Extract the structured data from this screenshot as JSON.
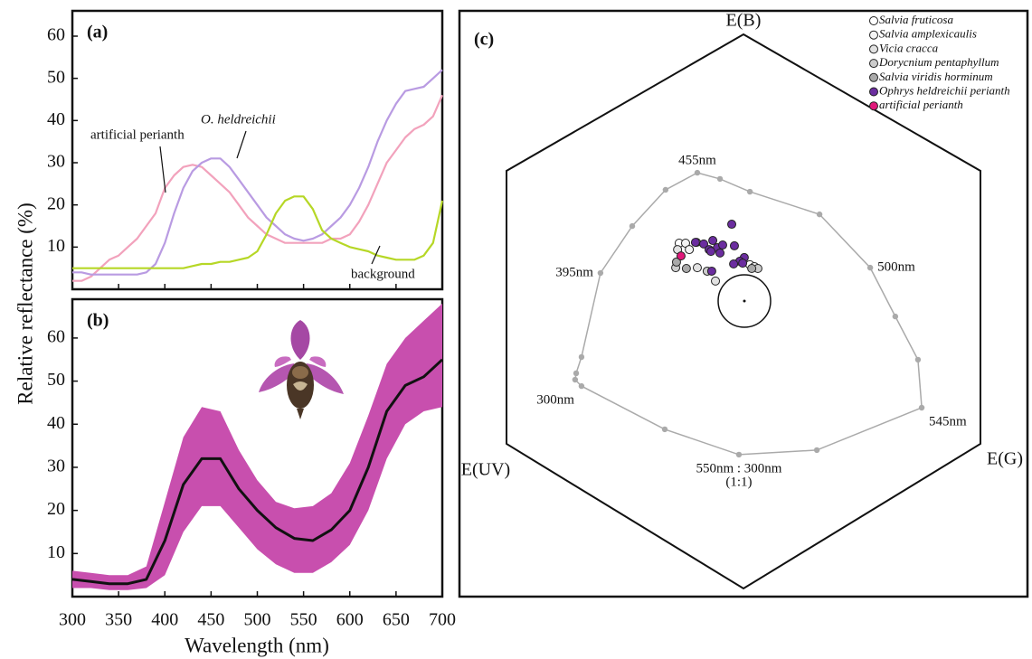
{
  "chart_data": [
    {
      "type": "line",
      "panel_label": "(a)",
      "ylabel": "Relative reflectance (%)",
      "xlim": [
        300,
        700
      ],
      "ylim": [
        0,
        66
      ],
      "yticks": [
        10,
        20,
        30,
        40,
        50,
        60
      ],
      "x": [
        300,
        310,
        320,
        330,
        340,
        350,
        360,
        370,
        380,
        390,
        400,
        410,
        420,
        430,
        440,
        450,
        460,
        470,
        480,
        490,
        500,
        510,
        520,
        530,
        540,
        550,
        560,
        570,
        580,
        590,
        600,
        610,
        620,
        630,
        640,
        650,
        660,
        670,
        680,
        690,
        700
      ],
      "series": [
        {
          "color": "#f2a2bc",
          "values": [
            2,
            2,
            3,
            5,
            7,
            8,
            10,
            12,
            15,
            18,
            24,
            27,
            29,
            29.5,
            29,
            27,
            25,
            23,
            20,
            17,
            15,
            13,
            12,
            11,
            11,
            11,
            11,
            11,
            12,
            12,
            13,
            16,
            20,
            25,
            30,
            33,
            36,
            38,
            39,
            41,
            46
          ]
        },
        {
          "color": "#b99be2",
          "values": [
            4,
            4,
            3.5,
            3.5,
            3.5,
            3.5,
            3.5,
            3.5,
            4,
            6,
            11,
            18,
            24,
            28,
            30,
            31,
            31,
            29,
            26,
            23,
            20,
            17,
            15,
            13,
            12,
            11.5,
            12,
            13,
            15,
            17,
            20,
            24,
            29,
            35,
            40,
            44,
            47,
            47.5,
            48,
            50,
            52
          ]
        },
        {
          "color": "#b6d726",
          "values": [
            5,
            5,
            5,
            5,
            5,
            5,
            5,
            5,
            5,
            5,
            5,
            5,
            5,
            5.5,
            6,
            6,
            6.5,
            6.5,
            7,
            7.5,
            9,
            13,
            18,
            21,
            22,
            22,
            19,
            14,
            12,
            11,
            10,
            9.5,
            9,
            8,
            7.5,
            7,
            7,
            7,
            8,
            11,
            21
          ]
        }
      ],
      "annotations": [
        "artificial perianth",
        "O. heldreichii",
        "background"
      ]
    },
    {
      "type": "line",
      "panel_label": "(b)",
      "xlabel": "Wavelength (nm)",
      "xlim": [
        300,
        700
      ],
      "ylim": [
        0,
        69
      ],
      "xticks": [
        300,
        350,
        400,
        450,
        500,
        550,
        600,
        650,
        700
      ],
      "yticks": [
        10,
        20,
        30,
        40,
        50,
        60
      ],
      "x": [
        300,
        320,
        340,
        360,
        380,
        400,
        420,
        440,
        460,
        480,
        500,
        520,
        540,
        560,
        580,
        600,
        620,
        640,
        660,
        680,
        700
      ],
      "band": {
        "color": "#c84fae",
        "upper": [
          6,
          5.5,
          5,
          5,
          7,
          22,
          37,
          44,
          43,
          34,
          27,
          22,
          20.5,
          21,
          24,
          31,
          42,
          54,
          60,
          64,
          68
        ],
        "lower": [
          2,
          2,
          1.5,
          1.5,
          2,
          5,
          15,
          21,
          21,
          16,
          11,
          7.5,
          5.5,
          5.5,
          8,
          12,
          20,
          32,
          40,
          43,
          44
        ]
      },
      "series": [
        {
          "color": "#111111",
          "values": [
            4,
            3.5,
            3,
            3,
            4,
            13,
            26,
            32,
            32,
            25,
            20,
            16,
            13.5,
            13,
            15.5,
            20,
            30,
            43,
            49,
            51,
            55
          ]
        }
      ]
    },
    {
      "type": "scatter",
      "panel_label": "(c)",
      "legend": "upper right",
      "vertex_labels": [
        "E(B)",
        "E(G)",
        "E(UV)"
      ],
      "locus": {
        "color": "#aaaaaa",
        "x": [
          -0.173,
          -0.088,
          0.024,
          0.285,
          0.475,
          0.569,
          0.654,
          0.668,
          0.275,
          -0.017,
          -0.295,
          -0.607,
          -0.631,
          -0.627,
          -0.607,
          -0.536,
          -0.417,
          -0.292
        ],
        "y": [
          0.481,
          0.458,
          0.41,
          0.325,
          0.125,
          -0.058,
          -0.22,
          -0.4,
          -0.559,
          -0.576,
          -0.481,
          -0.319,
          -0.295,
          -0.271,
          -0.21,
          0.105,
          0.281,
          0.417
        ],
        "labels": [
          "455nm",
          null,
          null,
          null,
          "500nm",
          null,
          null,
          "545nm",
          null,
          [
            "550nm : 300nm",
            "(1:1)"
          ],
          null,
          "300nm",
          null,
          null,
          null,
          "395nm",
          null,
          null
        ]
      },
      "series": [
        {
          "name": "Salvia fruticosa",
          "color": "#ffffff",
          "x": [
            -0.241,
            -0.176,
            0.024
          ],
          "y": [
            0.217,
            0.22,
            0.136
          ]
        },
        {
          "name": "Salvia amplexicaulis",
          "color": "#f4f4f4",
          "x": [
            -0.217,
            -0.203,
            0.041
          ],
          "y": [
            0.217,
            0.193,
            0.129
          ]
        },
        {
          "name": "Vicia cracca",
          "color": "#e2e2e2",
          "x": [
            -0.247,
            -0.173,
            -0.105
          ],
          "y": [
            0.193,
            0.125,
            0.075
          ]
        },
        {
          "name": "Dorycnium pentaphyllum",
          "color": "#cccccc",
          "x": [
            -0.254,
            -0.136,
            0.054
          ],
          "y": [
            0.125,
            0.112,
            0.122
          ]
        },
        {
          "name": "Salvia viridis horminum",
          "color": "#a9a9a9",
          "x": [
            -0.251,
            -0.214,
            0.031
          ],
          "y": [
            0.146,
            0.122,
            0.122
          ]
        },
        {
          "name": "Ophrys heldreichii perianth",
          "color": "#6b2d9f",
          "x": [
            -0.044,
            -0.18,
            -0.149,
            -0.115,
            -0.098,
            -0.078,
            -0.129,
            -0.088,
            -0.122,
            -0.034,
            0.003,
            -0.014,
            -0.003,
            -0.119,
            -0.037
          ],
          "y": [
            0.288,
            0.22,
            0.214,
            0.227,
            0.2,
            0.21,
            0.193,
            0.18,
            0.186,
            0.207,
            0.163,
            0.149,
            0.142,
            0.112,
            0.139
          ]
        },
        {
          "name": "artificial perianth",
          "color": "#e0187a",
          "x": [
            -0.234
          ],
          "y": [
            0.169
          ]
        }
      ]
    }
  ]
}
